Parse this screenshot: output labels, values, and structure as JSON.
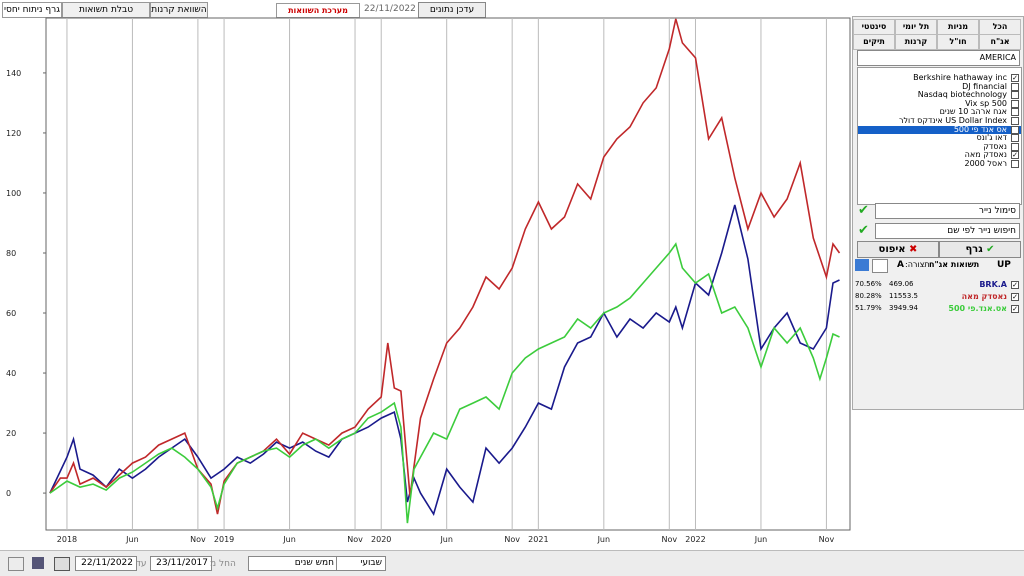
{
  "chart_data": {
    "type": "line",
    "xlim": [
      -1.6,
      59.8
    ],
    "xticks": [
      {
        "value": 0,
        "label": "2018"
      },
      {
        "value": 5,
        "label": "Jun"
      },
      {
        "value": 10,
        "label": "Nov"
      },
      {
        "value": 12,
        "label": "2019"
      },
      {
        "value": 17,
        "label": "Jun"
      },
      {
        "value": 22,
        "label": "Nov"
      },
      {
        "value": 24,
        "label": "2020"
      },
      {
        "value": 29,
        "label": "Jun"
      },
      {
        "value": 34,
        "label": "Nov"
      },
      {
        "value": 36,
        "label": "2021"
      },
      {
        "value": 41,
        "label": "Jun"
      },
      {
        "value": 46,
        "label": "Nov"
      },
      {
        "value": 48,
        "label": "2022"
      },
      {
        "value": 53,
        "label": "Jun"
      },
      {
        "value": 58,
        "label": "Nov"
      }
    ],
    "ylim": [
      -12.3,
      158.3
    ],
    "yticks": [
      0,
      20,
      40,
      60,
      80,
      100,
      120,
      140
    ],
    "grid": "x",
    "series": [
      {
        "name": "BRK.A",
        "color": "#1a1a8c",
        "x": [
          -1.3,
          0,
          0.5,
          1,
          2,
          3,
          4,
          5,
          6,
          7,
          8,
          9,
          10,
          11,
          12,
          13,
          14,
          15,
          16,
          17,
          18,
          19,
          20,
          21,
          22,
          23,
          24,
          25,
          25.5,
          26,
          26.5,
          27,
          28,
          29,
          30,
          31,
          32,
          33,
          34,
          35,
          36,
          37,
          38,
          39,
          40,
          41,
          42,
          43,
          44,
          45,
          46,
          46.5,
          47,
          48,
          49,
          50,
          51,
          52,
          53,
          54,
          55,
          56,
          57,
          58,
          58.5,
          59
        ],
        "values": [
          0,
          12,
          18,
          8,
          6,
          2,
          8,
          5,
          8,
          12,
          15,
          18,
          12,
          5,
          8,
          12,
          10,
          13,
          17,
          15,
          17,
          14,
          12,
          18,
          20,
          22,
          25,
          27,
          18,
          -3,
          5,
          0,
          -7,
          8,
          2,
          -3,
          15,
          10,
          15,
          22,
          30,
          28,
          42,
          50,
          52,
          60,
          52,
          58,
          55,
          60,
          57,
          62,
          55,
          70,
          66,
          80,
          96,
          78,
          48,
          55,
          60,
          50,
          48,
          55,
          70,
          71
        ]
      },
      {
        "name": "נאסדק מאה",
        "color": "#c0282a",
        "x": [
          -1.3,
          -0.5,
          0,
          0.5,
          1,
          2,
          3,
          4,
          5,
          6,
          7,
          8,
          9,
          10,
          11,
          11.5,
          12,
          13,
          14,
          15,
          16,
          17,
          18,
          19,
          20,
          21,
          22,
          23,
          24,
          24.5,
          25,
          25.5,
          26.2,
          27,
          28,
          29,
          30,
          31,
          32,
          33,
          34,
          35,
          36,
          37,
          38,
          39,
          40,
          41,
          42,
          43,
          44,
          45,
          46,
          46.5,
          47,
          48,
          49,
          50,
          51,
          52,
          53,
          54,
          55,
          56,
          57,
          58,
          58.5,
          59
        ],
        "values": [
          0,
          5,
          5,
          10,
          3,
          5,
          2,
          6,
          10,
          12,
          16,
          18,
          20,
          8,
          3,
          -7,
          4,
          10,
          12,
          14,
          18,
          13,
          20,
          18,
          16,
          20,
          22,
          28,
          32,
          50,
          35,
          34,
          -1,
          25,
          38,
          50,
          55,
          62,
          72,
          68,
          75,
          88,
          97,
          88,
          92,
          103,
          98,
          112,
          118,
          122,
          130,
          135,
          148,
          158,
          150,
          145,
          118,
          125,
          105,
          88,
          100,
          92,
          98,
          110,
          85,
          72,
          83,
          80
        ]
      },
      {
        "name": "אס.אנד.פי 500",
        "color": "#3ccc3c",
        "x": [
          -1.3,
          0,
          1,
          2,
          3,
          4,
          5,
          6,
          7,
          8,
          9,
          10,
          11,
          11.5,
          12,
          13,
          14,
          15,
          16,
          17,
          18,
          19,
          20,
          21,
          22,
          23,
          24,
          25,
          25.5,
          26,
          26.5,
          27,
          28,
          29,
          30,
          31,
          32,
          33,
          34,
          35,
          36,
          37,
          38,
          39,
          40,
          41,
          42,
          43,
          44,
          45,
          46,
          46.5,
          47,
          48,
          49,
          50,
          51,
          52,
          53,
          54,
          55,
          56,
          57,
          57.5,
          58,
          58.5,
          59
        ],
        "values": [
          0,
          4,
          2,
          3,
          1,
          5,
          7,
          10,
          13,
          15,
          12,
          8,
          2,
          -5,
          3,
          10,
          12,
          14,
          15,
          12,
          16,
          18,
          15,
          18,
          20,
          25,
          27,
          30,
          22,
          -10,
          8,
          12,
          20,
          18,
          28,
          30,
          32,
          28,
          40,
          45,
          48,
          50,
          52,
          58,
          55,
          60,
          62,
          65,
          70,
          75,
          80,
          83,
          75,
          70,
          73,
          60,
          62,
          55,
          42,
          55,
          50,
          55,
          45,
          38,
          45,
          53,
          52
        ]
      }
    ]
  },
  "ui": {
    "tabs": [
      "גרף ניתוח יחסי",
      "טבלת תשואות ומחזוריים",
      "השוואת קרנות"
    ],
    "new_system": "מערכת השוואות חדשה",
    "date": "22/11/2022",
    "update_button": "עדכן נתונים",
    "panel": {
      "tabs_row1": [
        "הכל",
        "מניות",
        "תל יומי",
        "סינטטי"
      ],
      "tabs_row2": [
        "אג\"ח",
        "חו\"ל",
        "קרנות",
        "תיקים"
      ],
      "region": "AMERICA",
      "items": [
        {
          "label": "Berkshire hathaway inc",
          "checked": true
        },
        {
          "label": "DJ financial",
          "checked": false
        },
        {
          "label": "Nasdaq biotechnology",
          "checked": false
        },
        {
          "label": "Vix sp 500",
          "checked": false
        },
        {
          "label": "אגח ארהב 10 שנים",
          "checked": false
        },
        {
          "label": "US Dollar Index אינדקס דולר",
          "checked": false
        },
        {
          "label": "אס אנד פי 500",
          "checked": true,
          "selected": true
        },
        {
          "label": "דאו ג'ונס",
          "checked": false
        },
        {
          "label": "נאסדק",
          "checked": false
        },
        {
          "label": "נאסדק מאה",
          "checked": true
        },
        {
          "label": "ראסל 2000",
          "checked": false
        }
      ],
      "symbol_field": "סימול נייר",
      "search_field": "חיפוש נייר לפי שם",
      "graph_button": "גרף",
      "reset_button": "איפוס",
      "bond_returns": "תשואות אג\"ח",
      "config_label": "תצורה:",
      "config_value": "A",
      "up": "UP",
      "rows": [
        {
          "return": "70.56%",
          "price": "469.06"
        },
        {
          "return": "80.28%",
          "price": "11553.5"
        },
        {
          "return": "51.79%",
          "price": "3949.94"
        }
      ]
    },
    "toolbar": {
      "to_date": "22/11/2022",
      "to": "עד",
      "from_date": "23/11/2017",
      "from": "החל מ",
      "period": "חמש שנים",
      "interval": "שבועי"
    }
  }
}
